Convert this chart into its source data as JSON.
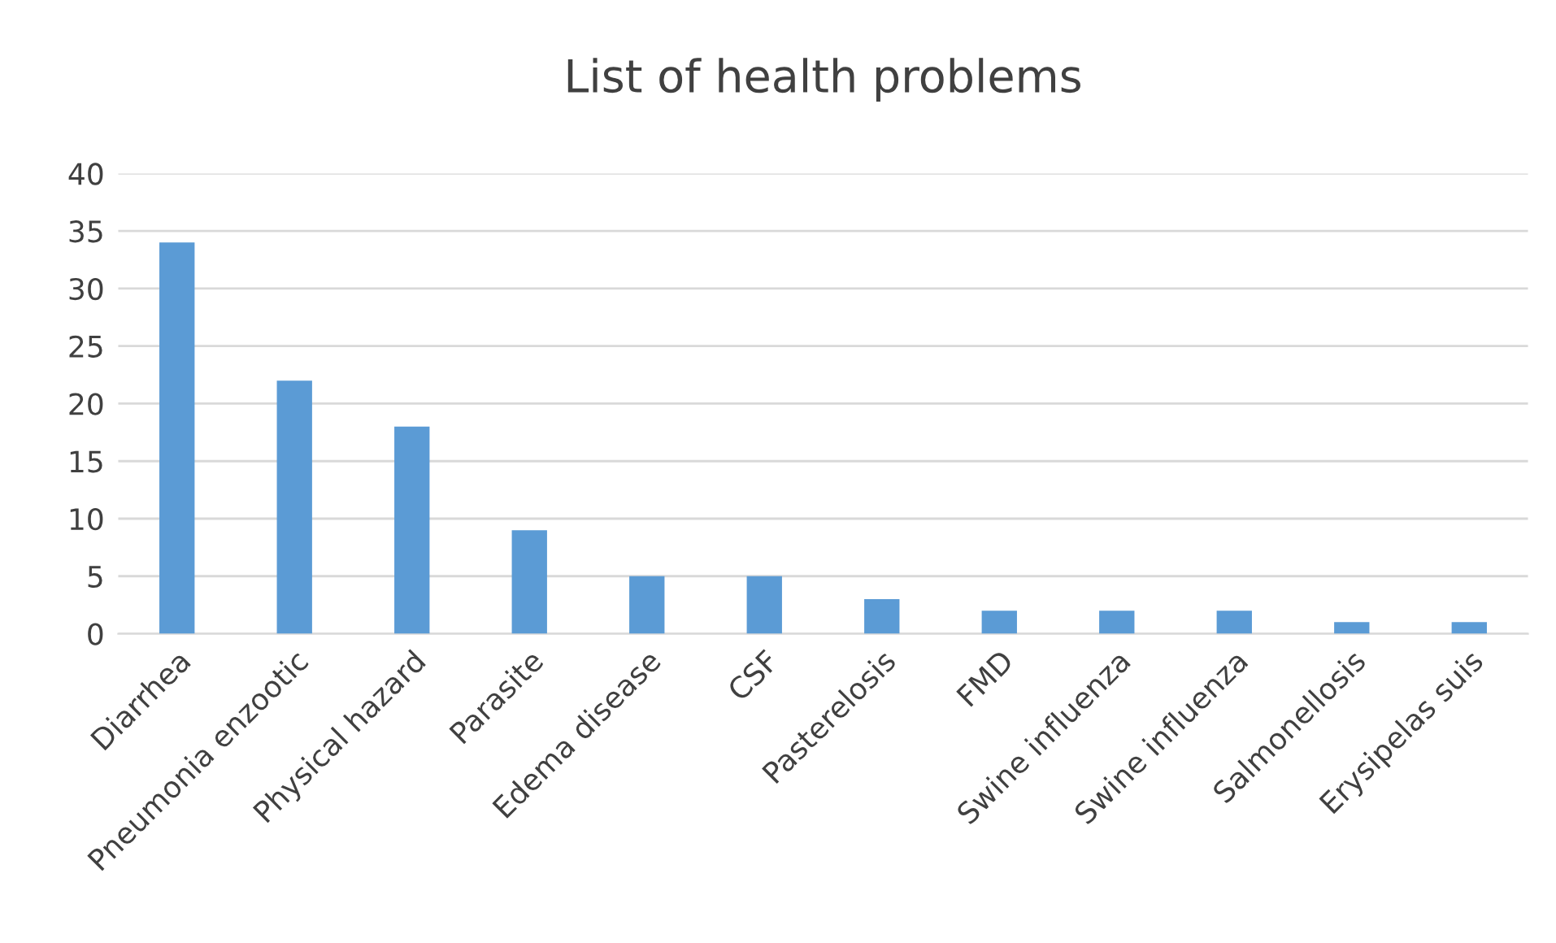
{
  "chart_data": {
    "type": "bar",
    "title": "List of health problems",
    "categories": [
      "Diarrhea",
      "Pneumonia enzootic",
      "Physical hazard",
      "Parasite",
      "Edema disease",
      "CSF",
      "Pasterelosis",
      "FMD",
      "Swine influenza",
      "Swine influenza",
      "Salmonellosis",
      "Erysipelas suis"
    ],
    "values": [
      34,
      22,
      18,
      9,
      5,
      5,
      3,
      2,
      2,
      2,
      1,
      1
    ],
    "color": "#5b9bd5",
    "ylim": [
      0,
      40
    ],
    "yticks": [
      0,
      5,
      10,
      15,
      20,
      25,
      30,
      35,
      40
    ],
    "grid": "y"
  }
}
